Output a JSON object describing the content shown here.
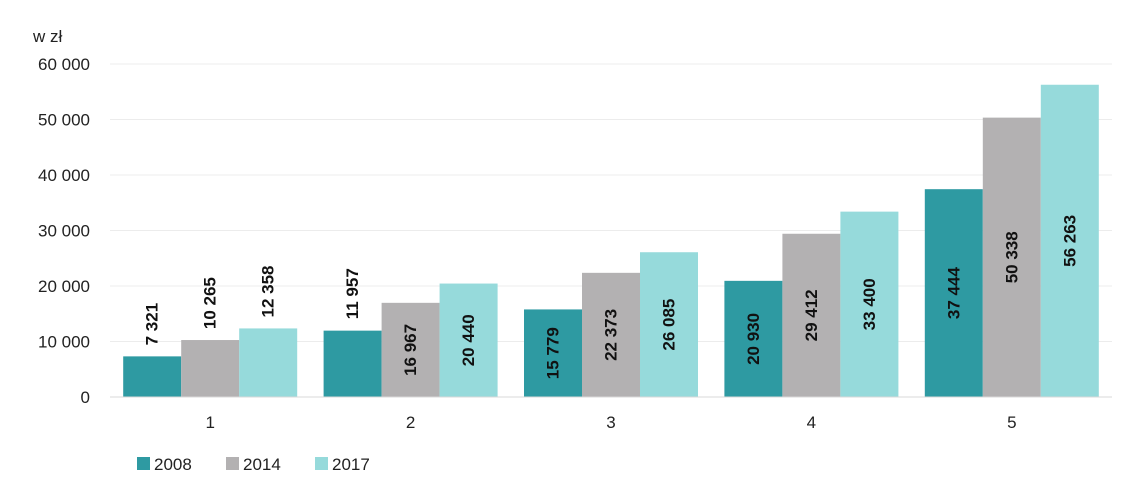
{
  "chart_data": {
    "type": "bar",
    "unit_label": "w zł",
    "categories": [
      "1",
      "2",
      "3",
      "4",
      "5"
    ],
    "series": [
      {
        "name": "2008",
        "color": "#2e9aa2",
        "values": [
          7321,
          11957,
          15779,
          20930,
          37444
        ],
        "labels": [
          "7 321",
          "11 957",
          "15 779",
          "20 930",
          "37 444"
        ]
      },
      {
        "name": "2014",
        "color": "#b3b1b2",
        "values": [
          10265,
          16967,
          22373,
          29412,
          50338
        ],
        "labels": [
          "10 265",
          "16 967",
          "22 373",
          "29 412",
          "50 338"
        ]
      },
      {
        "name": "2017",
        "color": "#96dadb",
        "values": [
          12358,
          20440,
          26085,
          33400,
          56263
        ],
        "labels": [
          "12 358",
          "20 440",
          "26 085",
          "33 400",
          "56 263"
        ]
      }
    ],
    "yticks": [
      0,
      10000,
      20000,
      30000,
      40000,
      50000,
      60000
    ],
    "ytick_labels": [
      "0",
      "10 000",
      "20 000",
      "30 000",
      "40 000",
      "50 000",
      "60 000"
    ],
    "ylim": [
      0,
      60000
    ],
    "grid": true,
    "legend_position": "bottom-left"
  }
}
